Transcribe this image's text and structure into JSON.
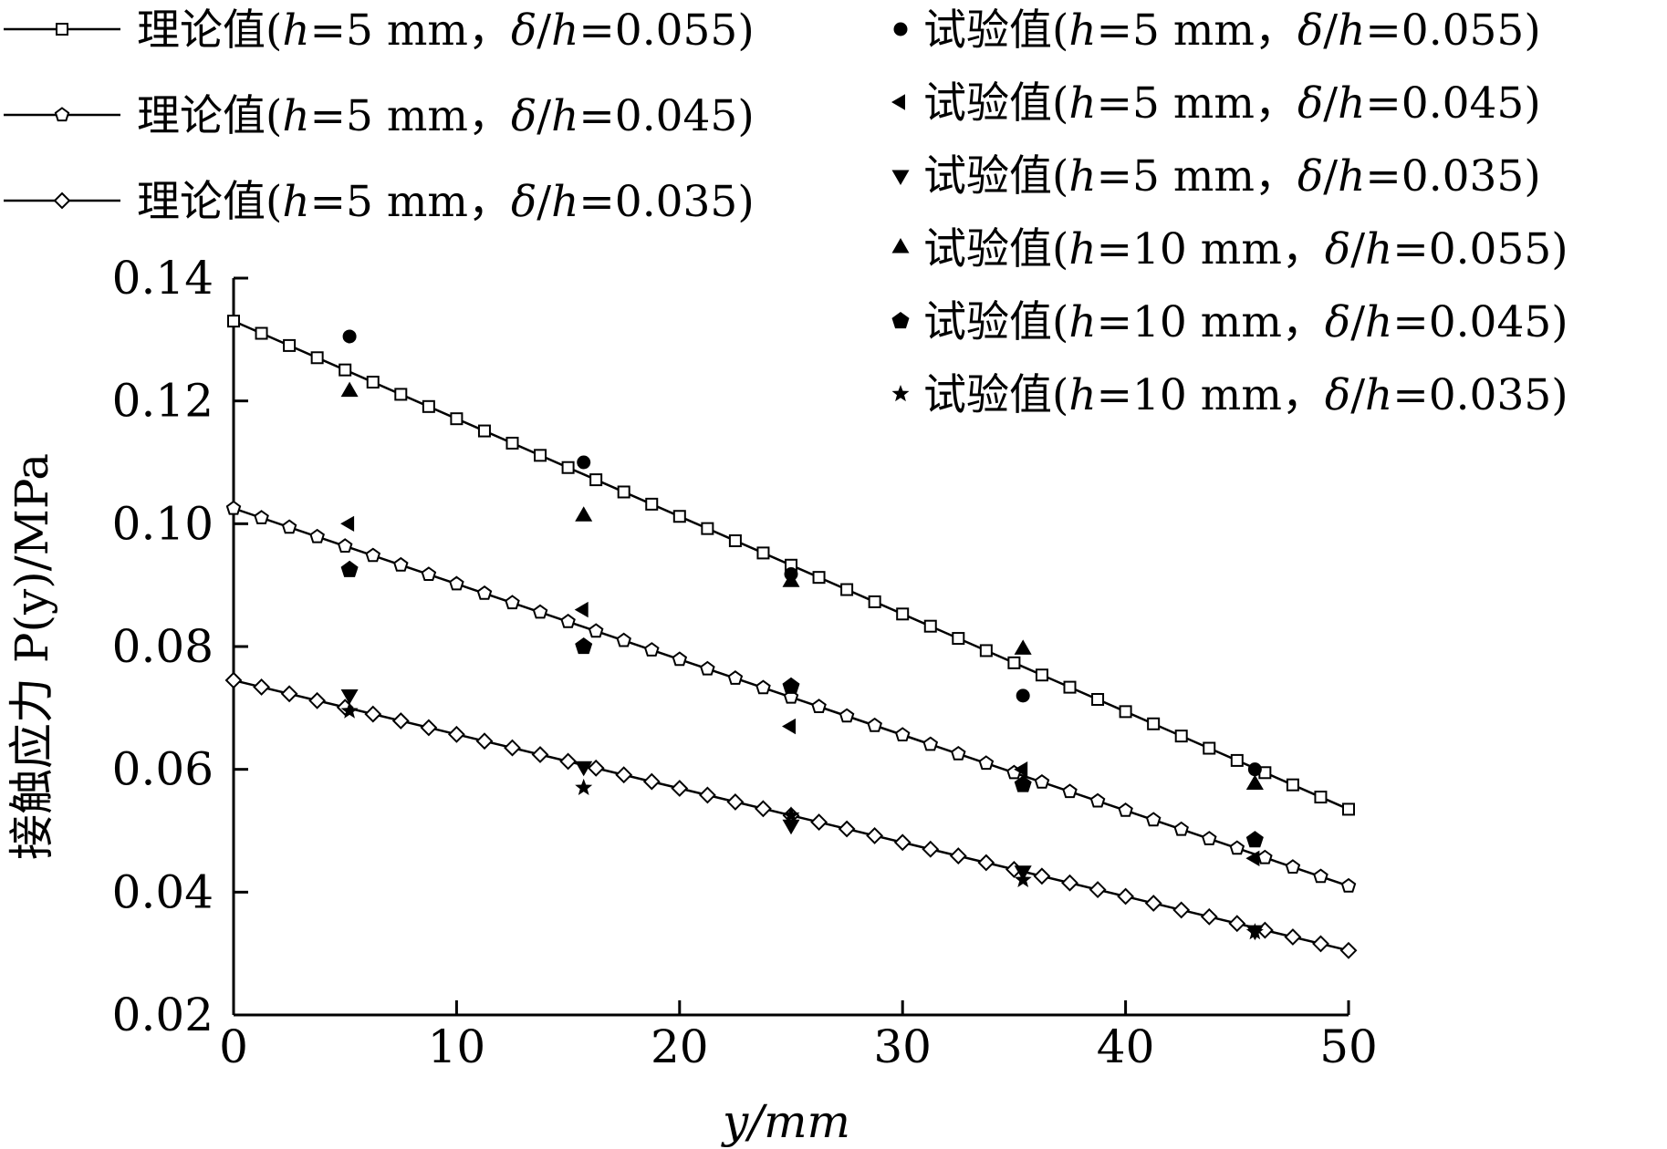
{
  "chart_data": {
    "type": "scatter",
    "xlabel": "y/mm",
    "ylabel": "接触应力 P(y)/MPa",
    "xlim": [
      0,
      50
    ],
    "ylim": [
      0.02,
      0.14
    ],
    "xticks": [
      "0",
      "10",
      "20",
      "30",
      "40",
      "50"
    ],
    "yticks": [
      "0.02",
      "0.04",
      "0.06",
      "0.08",
      "0.10",
      "0.12",
      "0.14"
    ],
    "grid": false,
    "legend_position": "top",
    "series": [
      {
        "name": "理论值(h=5 mm，δ/h=0.055)",
        "kind": "line",
        "marker": "square",
        "x": [
          0,
          50
        ],
        "y": [
          0.133,
          0.0535
        ]
      },
      {
        "name": "理论值(h=5 mm，δ/h=0.045)",
        "kind": "line",
        "marker": "pentagon-open",
        "x": [
          0,
          50
        ],
        "y": [
          0.1025,
          0.041
        ]
      },
      {
        "name": "理论值(h=5 mm，δ/h=0.035)",
        "kind": "line",
        "marker": "diamond",
        "x": [
          0,
          50
        ],
        "y": [
          0.0745,
          0.0305
        ]
      },
      {
        "name": "试验值(h=5 mm，δ/h=0.055)",
        "kind": "scatter",
        "marker": "circle",
        "x": [
          5.2,
          15.7,
          25.0,
          35.4,
          45.8
        ],
        "y": [
          0.1305,
          0.11,
          0.0918,
          0.072,
          0.06
        ]
      },
      {
        "name": "试验值(h=5 mm，δ/h=0.045)",
        "kind": "scatter",
        "marker": "triangle-left",
        "x": [
          5.2,
          15.7,
          25.0,
          35.4,
          45.8
        ],
        "y": [
          0.1,
          0.086,
          0.067,
          0.06,
          0.0455
        ]
      },
      {
        "name": "试验值(h=5 mm，δ/h=0.035)",
        "kind": "scatter",
        "marker": "triangle-down",
        "x": [
          5.2,
          15.7,
          25.0,
          35.4,
          45.8
        ],
        "y": [
          0.0722,
          0.0605,
          0.051,
          0.0435,
          0.0338
        ]
      },
      {
        "name": "试验值(h=10 mm，δ/h=0.055)",
        "kind": "scatter",
        "marker": "triangle-up",
        "x": [
          5.2,
          15.7,
          25.0,
          35.4,
          45.8
        ],
        "y": [
          0.1215,
          0.1012,
          0.0905,
          0.0795,
          0.0575
        ]
      },
      {
        "name": "试验值(h=10 mm，δ/h=0.045)",
        "kind": "scatter",
        "marker": "pentagon",
        "x": [
          5.2,
          15.7,
          25.0,
          35.4,
          45.8
        ],
        "y": [
          0.0925,
          0.08,
          0.0735,
          0.0575,
          0.0485
        ]
      },
      {
        "name": "试验值(h=10 mm，δ/h=0.035)",
        "kind": "scatter",
        "marker": "star",
        "x": [
          5.2,
          15.7,
          25.0,
          35.4,
          45.8
        ],
        "y": [
          0.0695,
          0.057,
          0.0525,
          0.042,
          0.0335
        ]
      }
    ]
  }
}
